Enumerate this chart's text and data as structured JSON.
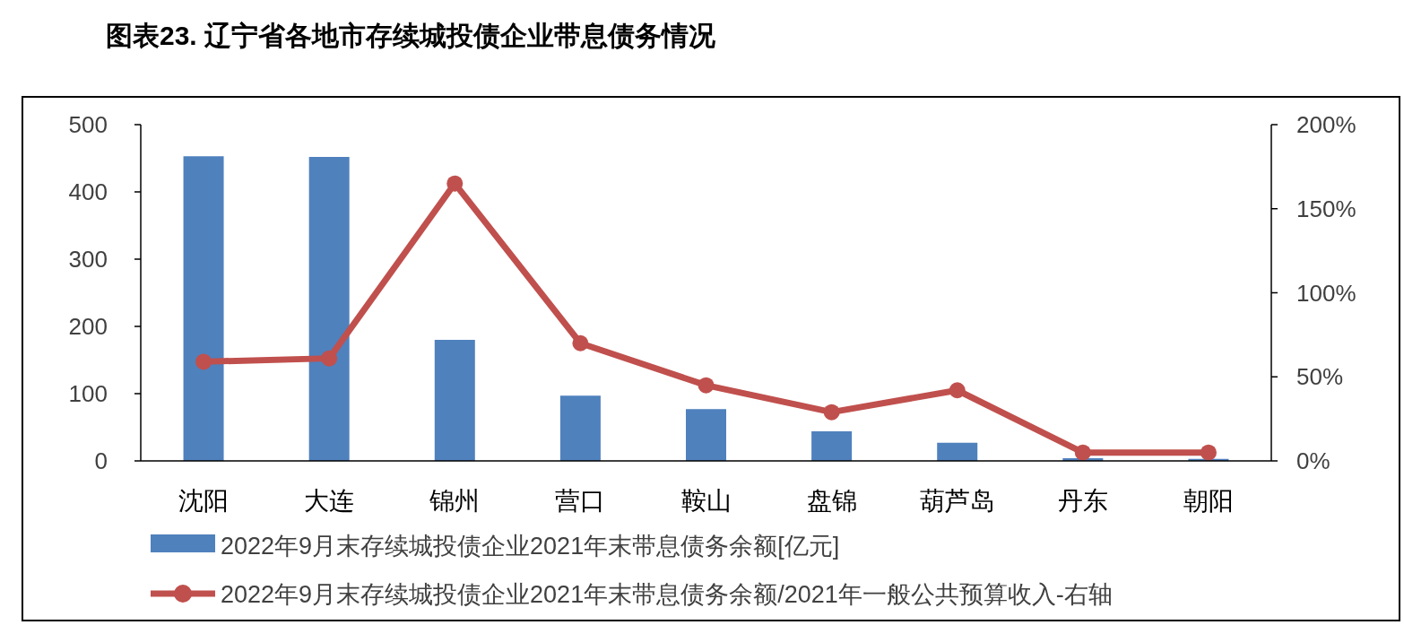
{
  "chart_data": {
    "type": "bar",
    "title": "图表23. 辽宁省各地市存续城投债企业带息债务情况",
    "categories": [
      "沈阳",
      "大连",
      "锦州",
      "营口",
      "鞍山",
      "盘锦",
      "葫芦岛",
      "丹东",
      "朝阳"
    ],
    "series": [
      {
        "name": "2022年9月末存续城投债企业2021年末带息债务余额[亿元]",
        "color": "#4f81bd",
        "values": [
          453,
          452,
          180,
          97,
          77,
          44,
          27,
          4,
          3
        ]
      },
      {
        "name": "2022年9月末存续城投债企业2021年末带息债务余额/2021年一般公共预算收入-右轴",
        "type": "line",
        "axis": "y2",
        "color": "#c0504d",
        "marker": "circle",
        "values": [
          59,
          61,
          165,
          70,
          45,
          29,
          42,
          5,
          5
        ]
      }
    ],
    "ylim": [
      0,
      500
    ],
    "yticks": [
      0,
      100,
      200,
      300,
      400,
      500
    ],
    "y2lim": [
      0,
      200
    ],
    "y2ticks": [
      {
        "value": 0,
        "label": "0%"
      },
      {
        "value": 50,
        "label": "50%"
      },
      {
        "value": 100,
        "label": "100%"
      },
      {
        "value": 150,
        "label": "150%"
      },
      {
        "value": 200,
        "label": "200%"
      }
    ],
    "grid": false,
    "legend": "bottom"
  }
}
